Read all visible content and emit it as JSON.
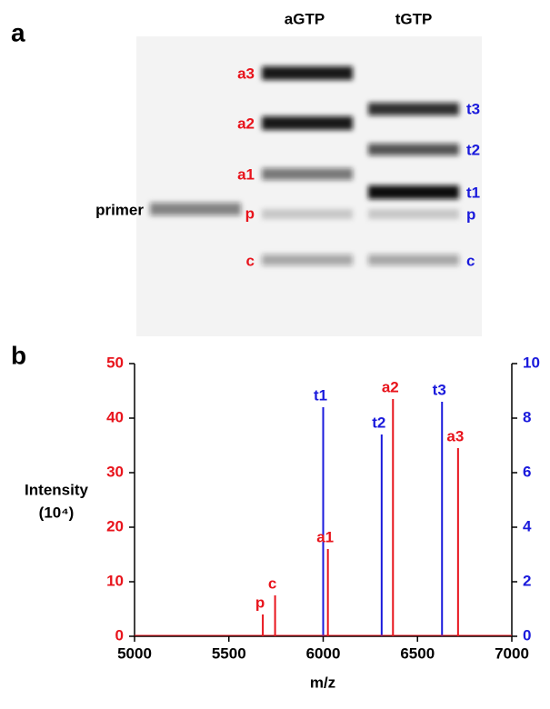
{
  "panel_a": {
    "label": "a",
    "lanes": [
      "aGTP",
      "tGTP"
    ],
    "primer_label": "primer",
    "a_labels": [
      "a3",
      "a2",
      "a1",
      "p",
      "c"
    ],
    "t_labels": [
      "t3",
      "t2",
      "t1",
      "p",
      "c"
    ]
  },
  "chart_data": {
    "type": "spectrum",
    "panel_label": "b",
    "xlabel": "m/z",
    "ylabel": "Intensity",
    "ylabel_unit": "(10⁴)",
    "xlim": [
      5000,
      7000
    ],
    "xticks": [
      5000,
      5500,
      6000,
      6500,
      7000
    ],
    "ylim": [
      0,
      50
    ],
    "yticks": [
      0,
      10,
      20,
      30,
      40,
      50
    ],
    "ycolor": "#e8141c",
    "y2lim": [
      0,
      10
    ],
    "y2ticks": [
      0,
      2,
      4,
      6,
      8,
      10
    ],
    "y2color": "#1a1adc",
    "series": [
      {
        "color": "#1a1adc",
        "axis": "y2",
        "x": [
          6000,
          6310,
          6630
        ],
        "values": [
          8.4,
          7.4,
          8.6
        ],
        "labels": [
          "t1",
          "t2",
          "t3"
        ]
      },
      {
        "color": "#e8141c",
        "axis": "y",
        "x": [
          5680,
          5745,
          6025,
          6370,
          6715
        ],
        "values": [
          4,
          7.5,
          16,
          43.5,
          34.5
        ],
        "labels": [
          "p",
          "c",
          "a1",
          "a2",
          "a3"
        ]
      }
    ]
  }
}
